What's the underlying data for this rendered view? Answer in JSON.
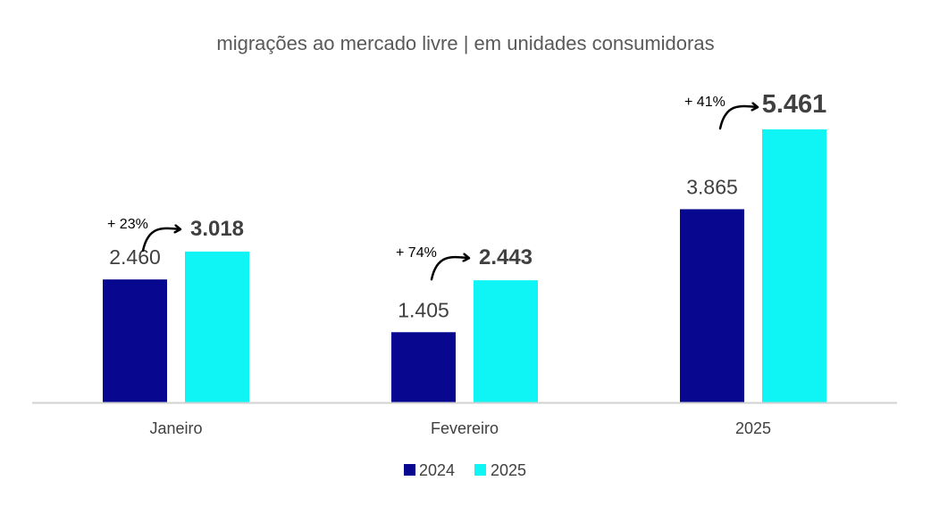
{
  "colors": {
    "series_2024": "#07078f",
    "series_2025": "#0ff5f5",
    "axis": "#d0d0d0",
    "text": "#404040",
    "title": "#595959",
    "arrow": "#000000"
  },
  "chart_data": {
    "type": "bar",
    "title": "migrações ao mercado livre | em unidades consumidoras",
    "xlabel": "",
    "ylabel": "",
    "ylim": [
      0,
      6000
    ],
    "grid": false,
    "legend_position": "bottom",
    "categories": [
      "Janeiro",
      "Fevereiro",
      "2025"
    ],
    "series": [
      {
        "name": "2024",
        "values": [
          2460,
          1405,
          3865
        ],
        "labels": [
          "2.460",
          "1.405",
          "3.865"
        ]
      },
      {
        "name": "2025",
        "values": [
          3018,
          2443,
          5461
        ],
        "labels": [
          "3.018",
          "2.443",
          "5.461"
        ]
      }
    ],
    "annotations": [
      {
        "category": "Janeiro",
        "text": "+ 23%"
      },
      {
        "category": "Fevereiro",
        "text": "+ 74%"
      },
      {
        "category": "2025",
        "text": "+ 41%"
      }
    ]
  }
}
